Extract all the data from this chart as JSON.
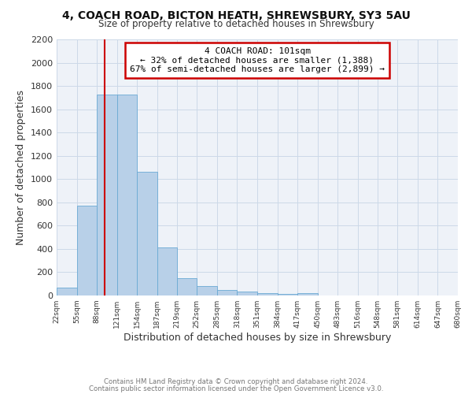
{
  "title1": "4, COACH ROAD, BICTON HEATH, SHREWSBURY, SY3 5AU",
  "title2": "Size of property relative to detached houses in Shrewsbury",
  "xlabel": "Distribution of detached houses by size in Shrewsbury",
  "ylabel": "Number of detached properties",
  "footnote1": "Contains HM Land Registry data © Crown copyright and database right 2024.",
  "footnote2": "Contains public sector information licensed under the Open Government Licence v3.0.",
  "property_size": 101,
  "property_label": "4 COACH ROAD: 101sqm",
  "annotation_line1": "← 32% of detached houses are smaller (1,388)",
  "annotation_line2": "67% of semi-detached houses are larger (2,899) →",
  "bin_edges": [
    22,
    55,
    88,
    121,
    154,
    187,
    219,
    252,
    285,
    318,
    351,
    384,
    417,
    450,
    483,
    516,
    548,
    581,
    614,
    647,
    680
  ],
  "bar_heights": [
    65,
    775,
    1725,
    1725,
    1060,
    415,
    150,
    80,
    48,
    35,
    22,
    12,
    18,
    0,
    0,
    0,
    0,
    0,
    0,
    0
  ],
  "bar_color": "#b8d0e8",
  "bar_edge_color": "#6aaad4",
  "red_line_color": "#cc0000",
  "box_edge_color": "#cc0000",
  "grid_color": "#ccd9e8",
  "background_color": "#eef2f8",
  "ylim": [
    0,
    2200
  ],
  "yticks": [
    0,
    200,
    400,
    600,
    800,
    1000,
    1200,
    1400,
    1600,
    1800,
    2000,
    2200
  ]
}
